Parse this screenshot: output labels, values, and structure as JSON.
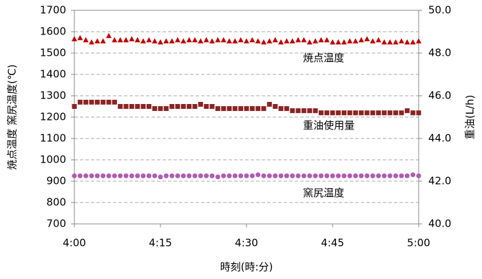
{
  "chart_data": {
    "type": "scatter",
    "x_label": "時刻(時:分)",
    "y_label": "焼点温度  窯尻温度(℃)",
    "y2_label": "重油(L/h)",
    "x": [
      0,
      1,
      2,
      3,
      4,
      5,
      6,
      7,
      8,
      9,
      10,
      11,
      12,
      13,
      14,
      15,
      16,
      17,
      18,
      19,
      20,
      21,
      22,
      23,
      24,
      25,
      26,
      27,
      28,
      29,
      30,
      31,
      32,
      33,
      34,
      35,
      36,
      37,
      38,
      39,
      40,
      41,
      42,
      43,
      44,
      45,
      46,
      47,
      48,
      49,
      50,
      51,
      52,
      53,
      54,
      55,
      56,
      57,
      58,
      59,
      60
    ],
    "xlim": [
      0,
      60
    ],
    "xticks": [
      {
        "value": 0,
        "label": "4:00"
      },
      {
        "value": 15,
        "label": "4:15"
      },
      {
        "value": 30,
        "label": "4:30"
      },
      {
        "value": 45,
        "label": "4:45"
      },
      {
        "value": 60,
        "label": "5:00"
      }
    ],
    "ylim": [
      700,
      1700
    ],
    "yticks": [
      700,
      800,
      900,
      1000,
      1100,
      1200,
      1300,
      1400,
      1500,
      1600,
      1700
    ],
    "y2lim": [
      40,
      50
    ],
    "y2ticks": [
      {
        "value": 40,
        "label": "40.0"
      },
      {
        "value": 42,
        "label": "42.0"
      },
      {
        "value": 44,
        "label": "44.0"
      },
      {
        "value": 46,
        "label": "46.0"
      },
      {
        "value": 48,
        "label": "48.0"
      },
      {
        "value": 50,
        "label": "50.0"
      }
    ],
    "grid": true,
    "series": [
      {
        "name": "焼点温度",
        "color": "#c00000",
        "marker": "triangle",
        "values": [
          1565,
          1570,
          1560,
          1550,
          1555,
          1555,
          1580,
          1560,
          1560,
          1560,
          1565,
          1560,
          1555,
          1560,
          1555,
          1550,
          1555,
          1555,
          1560,
          1555,
          1560,
          1560,
          1555,
          1560,
          1555,
          1560,
          1560,
          1555,
          1555,
          1560,
          1555,
          1560,
          1555,
          1550,
          1555,
          1560,
          1550,
          1555,
          1555,
          1560,
          1560,
          1550,
          1555,
          1560,
          1560,
          1550,
          1550,
          1550,
          1555,
          1555,
          1560,
          1565,
          1555,
          1560,
          1550,
          1550,
          1550,
          1555,
          1550,
          1550,
          1555
        ]
      },
      {
        "name": "重油使用量",
        "color": "#8b2323",
        "marker": "square",
        "axis": "y2",
        "values": [
          45.5,
          45.7,
          45.7,
          45.7,
          45.7,
          45.7,
          45.7,
          45.7,
          45.5,
          45.5,
          45.5,
          45.5,
          45.5,
          45.5,
          45.4,
          45.4,
          45.4,
          45.5,
          45.5,
          45.5,
          45.5,
          45.5,
          45.6,
          45.5,
          45.5,
          45.4,
          45.4,
          45.4,
          45.4,
          45.4,
          45.4,
          45.4,
          45.4,
          45.4,
          45.6,
          45.5,
          45.4,
          45.4,
          45.3,
          45.3,
          45.3,
          45.3,
          45.3,
          45.2,
          45.2,
          45.2,
          45.2,
          45.2,
          45.2,
          45.2,
          45.2,
          45.2,
          45.2,
          45.2,
          45.2,
          45.2,
          45.2,
          45.2,
          45.3,
          45.2,
          45.2
        ]
      },
      {
        "name": "窯尻温度",
        "color": "#b05ab4",
        "marker": "circle",
        "values": [
          925,
          925,
          925,
          925,
          925,
          925,
          925,
          925,
          925,
          925,
          925,
          925,
          925,
          925,
          925,
          920,
          925,
          925,
          925,
          925,
          925,
          925,
          925,
          925,
          925,
          920,
          925,
          925,
          925,
          925,
          925,
          925,
          930,
          925,
          925,
          925,
          925,
          925,
          925,
          925,
          925,
          925,
          925,
          925,
          925,
          925,
          925,
          925,
          925,
          925,
          925,
          925,
          925,
          925,
          925,
          925,
          925,
          925,
          925,
          930,
          925
        ]
      }
    ]
  }
}
